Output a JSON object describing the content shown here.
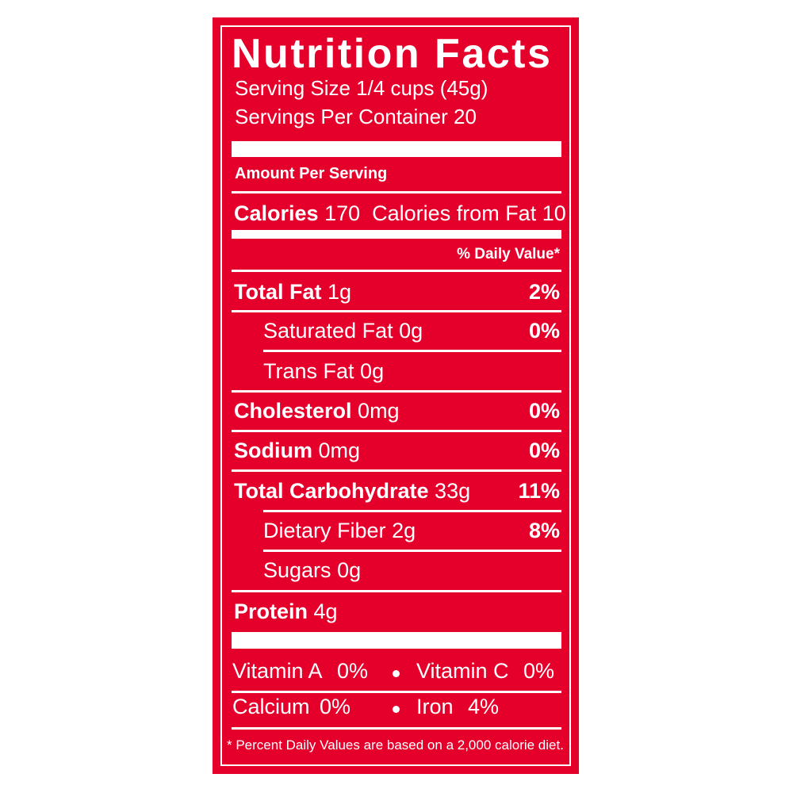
{
  "title": "Nutrition Facts",
  "serving_size": "Serving Size 1/4 cups (45g)",
  "servings_per_container": "Servings Per Container 20",
  "amount_per_serving": "Amount Per Serving",
  "calories": {
    "label": "Calories",
    "value": "170",
    "from_fat": "Calories from Fat 10"
  },
  "daily_value_header": "% Daily Value*",
  "nutrients": [
    {
      "name": "Total Fat",
      "amount": "1g",
      "daily_value": "2%"
    },
    {
      "name": "Saturated Fat",
      "amount": "0g",
      "daily_value": "0%"
    },
    {
      "name": "Trans Fat",
      "amount": "0g"
    },
    {
      "name": "Cholesterol",
      "amount": "0mg",
      "daily_value": "0%"
    },
    {
      "name": "Sodium",
      "amount": "0mg",
      "daily_value": "0%"
    },
    {
      "name": "Total Carbohydrate",
      "amount": "33g",
      "daily_value": "11%"
    },
    {
      "name": "Dietary Fiber",
      "amount": "2g",
      "daily_value": "8%"
    },
    {
      "name": "Sugars",
      "amount": "0g"
    },
    {
      "name": "Protein",
      "amount": "4g"
    }
  ],
  "vitamins": [
    [
      {
        "name": "Vitamin A",
        "value": "0%"
      },
      {
        "name": "Vitamin C",
        "value": "0%"
      }
    ],
    [
      {
        "name": "Calcium",
        "value": "0%"
      },
      {
        "name": "Iron",
        "value": "4%"
      }
    ]
  ],
  "footnote": "* Percent Daily Values are based on a 2,000 calorie diet."
}
